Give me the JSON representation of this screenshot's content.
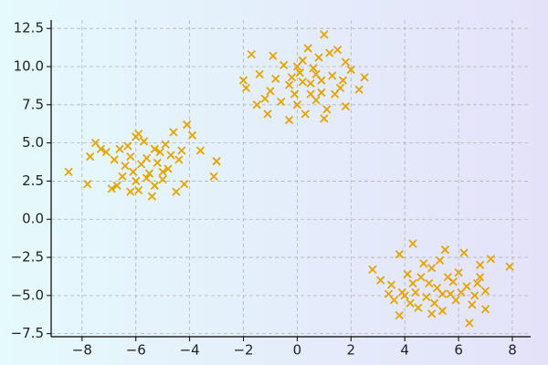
{
  "chart_data": {
    "type": "scatter",
    "color": "#e6a400",
    "grid": true,
    "xlim": [
      -9.15,
      8.68
    ],
    "ylim": [
      -7.7,
      13.05
    ],
    "xticks": [
      {
        "value": -8,
        "label": "−8"
      },
      {
        "value": -6,
        "label": "−6"
      },
      {
        "value": -4,
        "label": "−4"
      },
      {
        "value": -2,
        "label": "−2"
      },
      0,
      2,
      4,
      6,
      8
    ],
    "yticks": [
      {
        "value": -7.5,
        "label": "−7.5"
      },
      {
        "value": -5,
        "label": "−5.0"
      },
      {
        "value": -2.5,
        "label": "−2.5"
      },
      {
        "value": 0,
        "label": "0.0"
      },
      2.5,
      {
        "value": 5,
        "label": "5.0"
      },
      7.5,
      {
        "value": 10,
        "label": "10.0"
      },
      12.5
    ],
    "x": [
      -5.8,
      -6.2,
      -5.5,
      -6.5,
      -5.1,
      -6.0,
      -5.3,
      -6.8,
      -4.8,
      -5.9,
      -6.3,
      -5.6,
      -7.1,
      -4.6,
      -5.0,
      -6.7,
      -5.4,
      -6.1,
      -4.4,
      -7.5,
      -7.7,
      -6.9,
      -5.7,
      -4.9,
      -4.5,
      -6.4,
      -5.2,
      -3.9,
      -3.6,
      -4.2,
      -8.5,
      -7.8,
      -4.1,
      -3.1,
      -3.0,
      -6.0,
      -5.0,
      -6.6,
      -5.9,
      -7.3,
      -4.7,
      -5.3,
      -6.2,
      -5.6,
      -4.3,
      0.5,
      0.1,
      0.9,
      -0.3,
      1.3,
      0.2,
      0.7,
      -0.8,
      1.6,
      0.0,
      0.4,
      1.2,
      -1.4,
      -0.9,
      1.8,
      -1.2,
      0.3,
      -0.3,
      1.0,
      2.3,
      2.5,
      -1.9,
      1.8,
      1.0,
      -1.7,
      -2.0,
      -1.5,
      0.6,
      0.9,
      -0.1,
      1.4,
      0.5,
      0.8,
      -0.6,
      2.0,
      -1.1,
      0.2,
      -0.5,
      1.1,
      1.5,
      -1.0,
      0.7,
      0.0,
      1.7,
      -0.2,
      5.2,
      4.8,
      5.6,
      4.3,
      5.9,
      5.0,
      4.5,
      6.3,
      3.9,
      5.4,
      6.0,
      4.1,
      6.6,
      3.6,
      5.3,
      7.0,
      4.7,
      6.2,
      5.5,
      4.3,
      3.8,
      7.9,
      3.8,
      6.4,
      7.2,
      2.8,
      3.1,
      3.4,
      6.8,
      7.0,
      6.8,
      5.7,
      4.9,
      5.1,
      4.4,
      5.8,
      6.5,
      4.0,
      5.0,
      6.1,
      4.6,
      5.4,
      3.5,
      6.7,
      4.2
    ],
    "values": [
      3.6,
      4.1,
      3.0,
      2.8,
      4.4,
      5.4,
      2.2,
      3.9,
      3.3,
      1.9,
      4.8,
      4.0,
      4.4,
      5.7,
      2.6,
      2.2,
      1.5,
      3.1,
      3.9,
      5.0,
      4.1,
      2.0,
      5.1,
      4.9,
      1.8,
      3.5,
      3.7,
      5.5,
      4.5,
      2.3,
      3.1,
      2.3,
      6.2,
      2.8,
      3.8,
      2.5,
      3.1,
      4.6,
      5.6,
      4.6,
      4.2,
      4.6,
      1.8,
      2.7,
      4.5,
      8.9,
      9.6,
      8.3,
      8.8,
      9.4,
      10.4,
      7.8,
      9.2,
      8.6,
      7.5,
      11.2,
      10.9,
      9.5,
      10.7,
      10.3,
      7.9,
      6.9,
      6.5,
      6.6,
      8.5,
      9.3,
      8.6,
      7.4,
      12.1,
      10.8,
      9.1,
      7.5,
      9.9,
      9.1,
      8.2,
      8.2,
      8.2,
      10.6,
      7.7,
      9.8,
      6.9,
      9.0,
      10.1,
      7.2,
      11.1,
      8.4,
      9.5,
      10.0,
      9.1,
      9.3,
      -4.5,
      -5.1,
      -3.8,
      -4.2,
      -5.3,
      -3.2,
      -5.8,
      -4.4,
      -4.8,
      -6.0,
      -3.5,
      -3.6,
      -5.0,
      -5.3,
      -2.7,
      -4.7,
      -2.9,
      -2.2,
      -2.0,
      -1.6,
      -2.3,
      -3.1,
      -6.3,
      -6.8,
      -2.6,
      -3.3,
      -4.0,
      -4.9,
      -3.0,
      -5.9,
      -3.8,
      -4.9,
      -4.2,
      -5.5,
      -4.8,
      -4.1,
      -5.6,
      -5.0,
      -6.2,
      -4.8,
      -3.8,
      -4.9,
      -4.3,
      -4.2,
      -5.5
    ]
  }
}
